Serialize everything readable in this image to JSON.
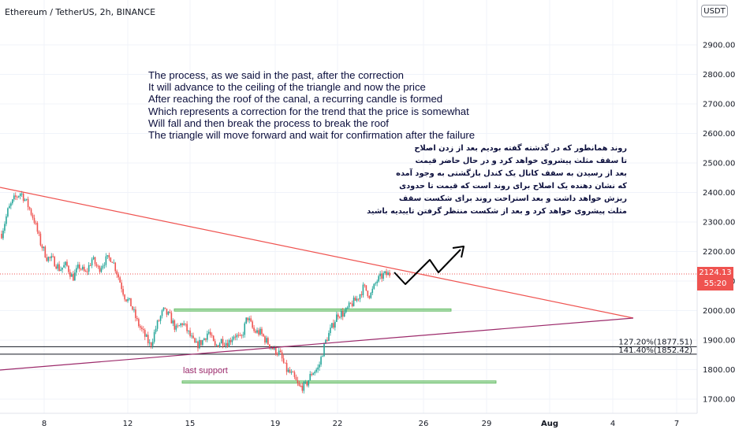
{
  "header": {
    "symbol": "Ethereum / TetherUS, 2h, BINANCE",
    "currency": "USDT"
  },
  "last_price": {
    "value": "2124.13",
    "countdown": "55:20",
    "color": "#ef5350"
  },
  "colors": {
    "up": "#26a69a",
    "down": "#ef5350",
    "resistance_line": "#ef5350",
    "support_line": "#9c2a6b",
    "zone_fill": "#8ed08e",
    "projection": "#000000"
  },
  "notes_en": [
    "The process, as we said in the past, after the correction",
    "It will advance to the ceiling of the triangle and now the price",
    "After reaching the roof of the canal, a recurring candle is formed",
    "Which represents a correction for the trend that the price is somewhat",
    "Will fall and then break the process to break the roof",
    "The triangle will move forward and wait for confirmation after the failure"
  ],
  "notes_fa": [
    "روند همانطور که در گذشته گفته بودیم بعد از زدن اصلاح",
    "تا سقف مثلث پیشروی خواهد کرد و در حال حاضر قیمت",
    "بعد از رسیدن به سقف کانال یک کندل بازگشتی به وجود آمده",
    "که نشان دهنده یک اصلاح برای روند است که قیمت تا حدودی",
    "ریزش خواهد داشت و بعد استراحت روند برای شکست سقف",
    "مثلث پیشروی خواهد کرد و بعد از شکست منتظر گرفتن تاییدیه باشید"
  ],
  "chart_data": {
    "type": "candlestick",
    "ylim": [
      1660,
      2990
    ],
    "y_ticks": [
      "1700.00",
      "1800.00",
      "1900.00",
      "2000.00",
      "2100.00",
      "2200.00",
      "2300.00",
      "2400.00",
      "2500.00",
      "2600.00",
      "2700.00",
      "2800.00",
      "2900.00"
    ],
    "x_ticks": [
      "8",
      "12",
      "15",
      "19",
      "22",
      "26",
      "29",
      "Aug",
      "4",
      "7"
    ],
    "fib_levels": [
      {
        "label": "127.20%(1877.51)",
        "price": 1877.51
      },
      {
        "label": "141.40%(1852.42)",
        "price": 1852.42
      }
    ],
    "last_price_line": 2124.13,
    "zones": [
      {
        "name": "resistance-zone",
        "price_top": 2006,
        "price_bottom": 1998
      },
      {
        "name": "last-support-zone",
        "price_top": 1762,
        "price_bottom": 1754,
        "label": "last support"
      }
    ],
    "close_path": [
      2260,
      2340,
      2380,
      2400,
      2360,
      2310,
      2230,
      2180,
      2170,
      2140,
      2155,
      2110,
      2150,
      2125,
      2175,
      2140,
      2170,
      2180,
      2120,
      2050,
      2020,
      1960,
      1920,
      1880,
      1950,
      2000,
      1980,
      1935,
      1960,
      1920,
      1880,
      1895,
      1930,
      1875,
      1900,
      1890,
      1920,
      1900,
      1980,
      1930,
      1925,
      1895,
      1870,
      1855,
      1800,
      1780,
      1740,
      1745,
      1790,
      1805,
      1890,
      1940,
      1990,
      1990,
      2020,
      2040,
      2080,
      2050,
      2100,
      2120,
      2124
    ]
  }
}
